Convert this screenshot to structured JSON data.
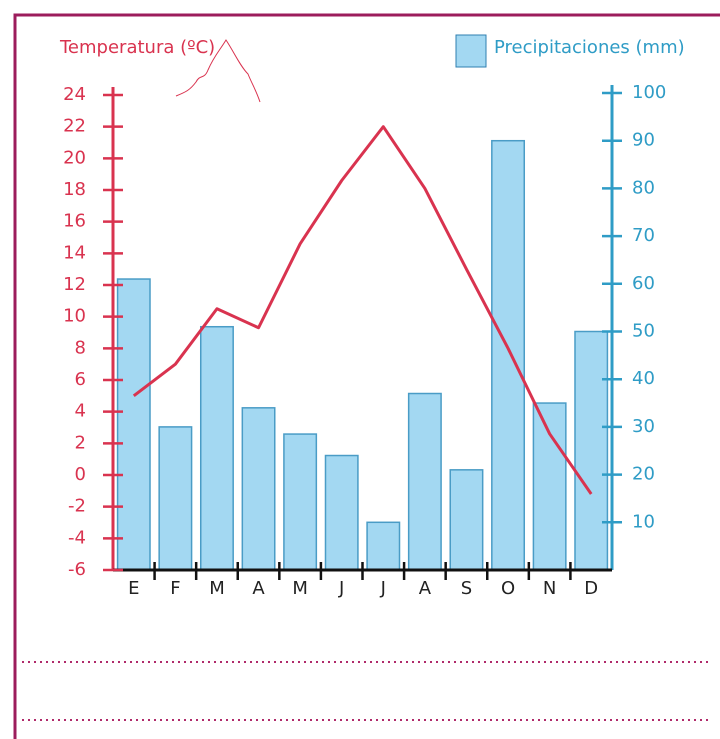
{
  "chart_data": {
    "type": "combo",
    "categories": [
      "E",
      "F",
      "M",
      "A",
      "M",
      "J",
      "J",
      "A",
      "S",
      "O",
      "N",
      "D"
    ],
    "series": [
      {
        "name": "Temperatura (ºC)",
        "type": "line",
        "color": "#d9334f",
        "values": [
          5,
          7,
          10.5,
          9.3,
          14.6,
          18.6,
          22,
          18.1,
          13,
          8,
          2.6,
          -1.2
        ]
      },
      {
        "name": "Precipitaciones (mm)",
        "type": "bar",
        "axis": "y2",
        "color": "#a3d8f2",
        "values": [
          61,
          30,
          51,
          34,
          28.5,
          24,
          10,
          37,
          21,
          90,
          35,
          50
        ]
      }
    ],
    "ylim": [
      -6,
      24
    ],
    "yticks": [
      -6,
      -4,
      -2,
      0,
      2,
      4,
      6,
      8,
      10,
      12,
      14,
      16,
      18,
      20,
      22,
      24
    ],
    "y2lim": [
      0,
      100
    ],
    "y2ticks": [
      10,
      20,
      30,
      40,
      50,
      60,
      70,
      80,
      90,
      100
    ],
    "ycolor": "#d9334f",
    "y2color": "#2f9cc6"
  }
}
